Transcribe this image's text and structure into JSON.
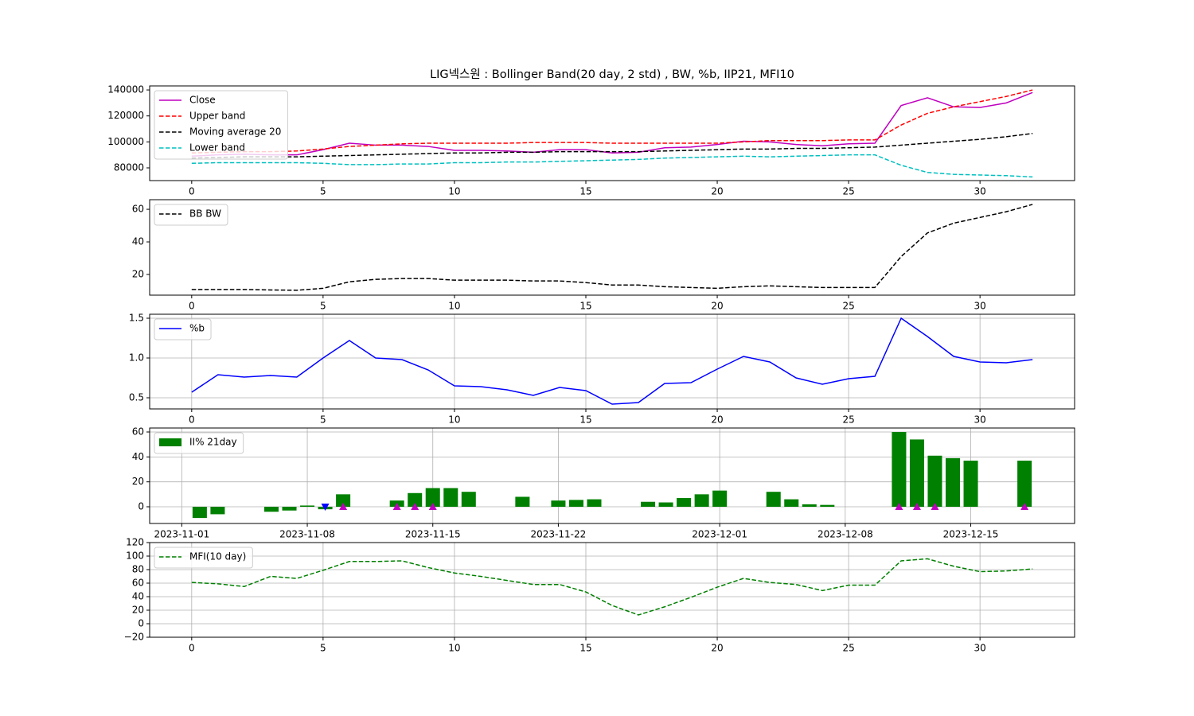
{
  "title": "LIG넥스원 : Bollinger Band(20 day, 2 std) , BW, %b, IIP21, MFI10",
  "chart_data": [
    {
      "type": "line",
      "grid": false,
      "legend": "upper left",
      "x": [
        0,
        1,
        2,
        3,
        4,
        5,
        6,
        7,
        8,
        9,
        10,
        11,
        12,
        13,
        14,
        15,
        16,
        17,
        18,
        19,
        20,
        21,
        22,
        23,
        24,
        25,
        26,
        27,
        28,
        29,
        30,
        31,
        32
      ],
      "xlim": [
        -1.6,
        33.6
      ],
      "xticks": [
        0,
        5,
        10,
        15,
        20,
        25,
        30
      ],
      "ylim": [
        70200,
        143100
      ],
      "yticks": [
        80000,
        100000,
        120000,
        140000
      ],
      "series": [
        {
          "name": "Close",
          "color": "#bf00bf",
          "dash": false,
          "values": [
            89000,
            90000,
            90500,
            90000,
            90000,
            94000,
            99000,
            97500,
            97500,
            96500,
            93500,
            93500,
            93000,
            92000,
            94000,
            94000,
            91500,
            92000,
            95500,
            96000,
            98000,
            100500,
            100000,
            98000,
            97000,
            98500,
            99000,
            128000,
            134000,
            127000,
            126500,
            130000,
            138000
          ]
        },
        {
          "name": "Upper band",
          "color": "#ff0000",
          "dash": true,
          "values": [
            91500,
            92000,
            92500,
            92500,
            93000,
            94500,
            96500,
            97500,
            98500,
            99000,
            99000,
            99000,
            99000,
            99500,
            99500,
            99500,
            99000,
            99000,
            99000,
            99000,
            99000,
            100000,
            101000,
            101000,
            101000,
            101500,
            101500,
            113000,
            122000,
            127000,
            131000,
            135000,
            140000
          ]
        },
        {
          "name": "Moving average 20",
          "color": "#000000",
          "dash": true,
          "values": [
            87500,
            88000,
            88500,
            88500,
            88500,
            89000,
            89500,
            90000,
            90500,
            91000,
            91500,
            91500,
            92000,
            92000,
            92500,
            92500,
            92500,
            92500,
            93000,
            93500,
            94000,
            94500,
            94500,
            95000,
            95000,
            95500,
            96000,
            97500,
            99000,
            100500,
            102000,
            104000,
            106500
          ]
        },
        {
          "name": "Lower band",
          "color": "#00bfbf",
          "dash": true,
          "values": [
            83500,
            84000,
            84000,
            84000,
            84000,
            83500,
            82500,
            82500,
            83000,
            83000,
            84000,
            84000,
            84500,
            84500,
            85000,
            85500,
            86000,
            86500,
            87500,
            88000,
            88500,
            89000,
            88500,
            89000,
            89500,
            90000,
            90000,
            82000,
            76500,
            75000,
            74500,
            74000,
            73000
          ]
        }
      ]
    },
    {
      "type": "line",
      "grid": false,
      "legend": "upper left",
      "x": [
        0,
        1,
        2,
        3,
        4,
        5,
        6,
        7,
        8,
        9,
        10,
        11,
        12,
        13,
        14,
        15,
        16,
        17,
        18,
        19,
        20,
        21,
        22,
        23,
        24,
        25,
        26,
        27,
        28,
        29,
        30,
        31,
        32
      ],
      "xlim": [
        -1.6,
        33.6
      ],
      "xticks": [
        0,
        5,
        10,
        15,
        20,
        25,
        30
      ],
      "ylim": [
        7.3,
        65.9
      ],
      "yticks": [
        20,
        40,
        60
      ],
      "series": [
        {
          "name": "BB BW",
          "color": "#000000",
          "dash": true,
          "values": [
            10.8,
            10.8,
            10.8,
            10.5,
            10.3,
            11.5,
            15.5,
            17,
            17.5,
            17.5,
            16.5,
            16.5,
            16.5,
            16,
            16,
            15,
            13.5,
            13.5,
            12.5,
            12,
            11.5,
            12.5,
            13,
            12.5,
            12,
            12,
            12,
            31,
            45.5,
            51.5,
            55,
            58.5,
            63
          ]
        }
      ]
    },
    {
      "type": "line",
      "grid": true,
      "legend": "upper left",
      "x": [
        0,
        1,
        2,
        3,
        4,
        5,
        6,
        7,
        8,
        9,
        10,
        11,
        12,
        13,
        14,
        15,
        16,
        17,
        18,
        19,
        20,
        21,
        22,
        23,
        24,
        25,
        26,
        27,
        28,
        29,
        30,
        31,
        32
      ],
      "xlim": [
        -1.6,
        33.6
      ],
      "xticks": [
        0,
        5,
        10,
        15,
        20,
        25,
        30
      ],
      "ylim": [
        0.36,
        1.55
      ],
      "yticks": [
        0.5,
        {
          "value": 1,
          "label": "1.0"
        },
        1.5
      ],
      "series": [
        {
          "name": "%b",
          "color": "#0000ff",
          "dash": false,
          "values": [
            0.57,
            0.79,
            0.76,
            0.78,
            0.76,
            1.0,
            1.22,
            1.0,
            0.98,
            0.85,
            0.65,
            0.64,
            0.6,
            0.53,
            0.63,
            0.59,
            0.42,
            0.44,
            0.68,
            0.69,
            0.86,
            1.02,
            0.95,
            0.75,
            0.67,
            0.74,
            0.77,
            1.5,
            1.27,
            1.02,
            0.95,
            0.94,
            0.98
          ]
        }
      ]
    },
    {
      "type": "bar",
      "grid": true,
      "legend": "upper left",
      "x": [
        "2023-11-02",
        "2023-11-03",
        "2023-11-06",
        "2023-11-07",
        "2023-11-08",
        "2023-11-09",
        "2023-11-10",
        "2023-11-13",
        "2023-11-14",
        "2023-11-15",
        "2023-11-16",
        "2023-11-17",
        "2023-11-20",
        "2023-11-21",
        "2023-11-22",
        "2023-11-23",
        "2023-11-24",
        "2023-11-27",
        "2023-11-28",
        "2023-11-29",
        "2023-11-30",
        "2023-12-01",
        "2023-12-04",
        "2023-12-05",
        "2023-12-06",
        "2023-12-07",
        "2023-12-08",
        "2023-12-11",
        "2023-12-12",
        "2023-12-13",
        "2023-12-14",
        "2023-12-15",
        "2023-12-18"
      ],
      "xlim": [
        "2023-10-30T05:00",
        "2023-12-20T19:00"
      ],
      "xticks": [
        "2023-11-01",
        "2023-11-08",
        "2023-11-15",
        "2023-11-22",
        "2023-12-01",
        "2023-12-08",
        "2023-12-15"
      ],
      "ylim": [
        -13.4,
        63.2
      ],
      "yticks": [
        0,
        20,
        40,
        60
      ],
      "series": [
        {
          "name": "II% 21day",
          "color": "#008000",
          "values": [
            -9,
            -6,
            -4,
            -3,
            1,
            -2,
            10,
            5,
            11,
            15,
            15,
            12,
            8,
            0,
            5,
            5.5,
            6,
            4,
            3.5,
            7,
            10,
            13,
            12,
            6,
            2,
            1.5,
            0,
            60,
            54,
            41,
            39,
            37,
            37
          ]
        }
      ],
      "markers": [
        {
          "shape": "triangle-up",
          "color": "#bf00bf",
          "x": [
            "2023-11-10",
            "2023-11-13",
            "2023-11-14",
            "2023-11-15",
            "2023-12-11",
            "2023-12-12",
            "2023-12-13",
            "2023-12-18"
          ],
          "values": [
            0,
            0,
            0,
            0,
            0,
            0,
            0,
            0
          ]
        },
        {
          "shape": "triangle-down",
          "color": "#0000ff",
          "x": [
            "2023-11-09"
          ],
          "values": [
            0
          ]
        }
      ]
    },
    {
      "type": "line",
      "grid": true,
      "legend": "upper left",
      "x": [
        0,
        1,
        2,
        3,
        4,
        5,
        6,
        7,
        8,
        9,
        10,
        11,
        12,
        13,
        14,
        15,
        16,
        17,
        18,
        19,
        20,
        21,
        22,
        23,
        24,
        25,
        26,
        27,
        28,
        29,
        30,
        31,
        32
      ],
      "xlim": [
        -1.6,
        33.6
      ],
      "xticks": [
        0,
        5,
        10,
        15,
        20,
        25,
        30
      ],
      "ylim": [
        -20,
        120
      ],
      "yticks": [
        {
          "value": -20,
          "label": "−20"
        },
        0,
        20,
        40,
        60,
        80,
        100,
        120
      ],
      "series": [
        {
          "name": "MFI(10 day)",
          "color": "#008000",
          "dash": true,
          "values": [
            61,
            59,
            55,
            70,
            67,
            79,
            92,
            92,
            93,
            83,
            75,
            70,
            64,
            58,
            58,
            47,
            27,
            13,
            25,
            39,
            54,
            67,
            61,
            58,
            49,
            57,
            57,
            93,
            96,
            85,
            77,
            78,
            81
          ]
        }
      ]
    }
  ]
}
